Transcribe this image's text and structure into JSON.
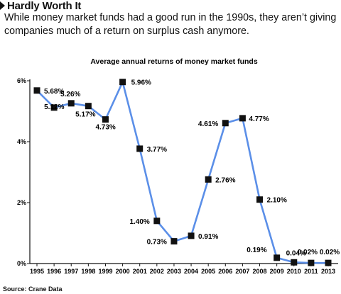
{
  "header": {
    "title": "Hardly Worth It",
    "subtitle": "While money market funds had a good run in the 1990s, they aren’t giving companies much of a return on surplus cash anymore."
  },
  "source": "Source: Crane Data",
  "colors": {
    "line": "#5b8fe8",
    "marker": "#111111",
    "axis": "#111111"
  },
  "chart_data": {
    "type": "line",
    "title": "Average annual returns of money market funds",
    "xlabel": "",
    "ylabel": "",
    "categories": [
      "1995",
      "1996",
      "1997",
      "1998",
      "1999",
      "2000",
      "2001",
      "2002",
      "2003",
      "2004",
      "2005",
      "2006",
      "2007",
      "2008",
      "2009",
      "2010",
      "2011",
      "2013"
    ],
    "series": [
      {
        "values": [
          5.68,
          5.12,
          5.26,
          5.17,
          4.73,
          5.96,
          3.77,
          1.4,
          0.73,
          0.91,
          2.76,
          4.61,
          4.77,
          2.1,
          0.19,
          0.04,
          0.02,
          0.02
        ],
        "labels": [
          "5.68%",
          "5.12%",
          "5.26%",
          "5.17%",
          "4.73%",
          "5.96%",
          "3.77%",
          "1.40%",
          "0.73%",
          "0.91%",
          "2.76%",
          "4.61%",
          "4.77%",
          "2.10%",
          "0.19%",
          "0.04%",
          "0.02%",
          "0.02%"
        ]
      }
    ],
    "yticks": [
      "0%",
      "2%",
      "4%",
      "6%"
    ],
    "ylim": [
      0,
      6
    ],
    "grid": false,
    "legend": "none"
  }
}
